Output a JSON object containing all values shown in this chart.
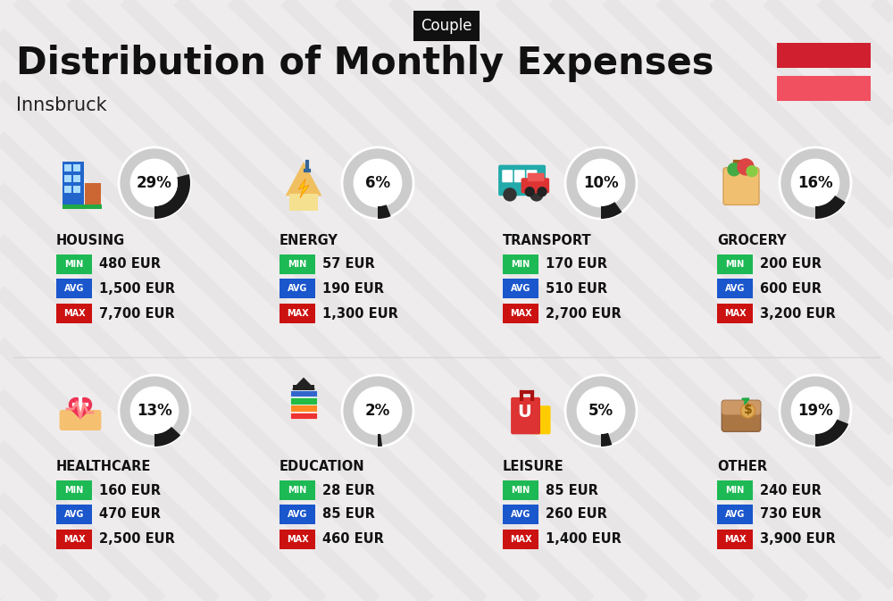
{
  "title": "Distribution of Monthly Expenses",
  "subtitle": "Innsbruck",
  "label_tag": "Couple",
  "bg_color": "#eeeced",
  "stripe_color": "#e5e3e4",
  "title_color": "#111111",
  "subtitle_color": "#222222",
  "label_tag_bg": "#111111",
  "label_tag_text": "#ffffff",
  "flag_red_dark": "#d02030",
  "flag_red_light": "#f05060",
  "categories": [
    {
      "name": "HOUSING",
      "pct": 29,
      "min": "480 EUR",
      "avg": "1,500 EUR",
      "max": "7,700 EUR",
      "row": 0,
      "col": 0
    },
    {
      "name": "ENERGY",
      "pct": 6,
      "min": "57 EUR",
      "avg": "190 EUR",
      "max": "1,300 EUR",
      "row": 0,
      "col": 1
    },
    {
      "name": "TRANSPORT",
      "pct": 10,
      "min": "170 EUR",
      "avg": "510 EUR",
      "max": "2,700 EUR",
      "row": 0,
      "col": 2
    },
    {
      "name": "GROCERY",
      "pct": 16,
      "min": "200 EUR",
      "avg": "600 EUR",
      "max": "3,200 EUR",
      "row": 0,
      "col": 3
    },
    {
      "name": "HEALTHCARE",
      "pct": 13,
      "min": "160 EUR",
      "avg": "470 EUR",
      "max": "2,500 EUR",
      "row": 1,
      "col": 0
    },
    {
      "name": "EDUCATION",
      "pct": 2,
      "min": "28 EUR",
      "avg": "85 EUR",
      "max": "460 EUR",
      "row": 1,
      "col": 1
    },
    {
      "name": "LEISURE",
      "pct": 5,
      "min": "85 EUR",
      "avg": "260 EUR",
      "max": "1,400 EUR",
      "row": 1,
      "col": 2
    },
    {
      "name": "OTHER",
      "pct": 19,
      "min": "240 EUR",
      "avg": "730 EUR",
      "max": "3,900 EUR",
      "row": 1,
      "col": 3
    }
  ],
  "min_color": "#1db954",
  "avg_color": "#1a56cc",
  "max_color": "#cc1111",
  "donut_bg": "#cccccc",
  "donut_fg": "#1a1a1a",
  "donut_white": "#ffffff"
}
